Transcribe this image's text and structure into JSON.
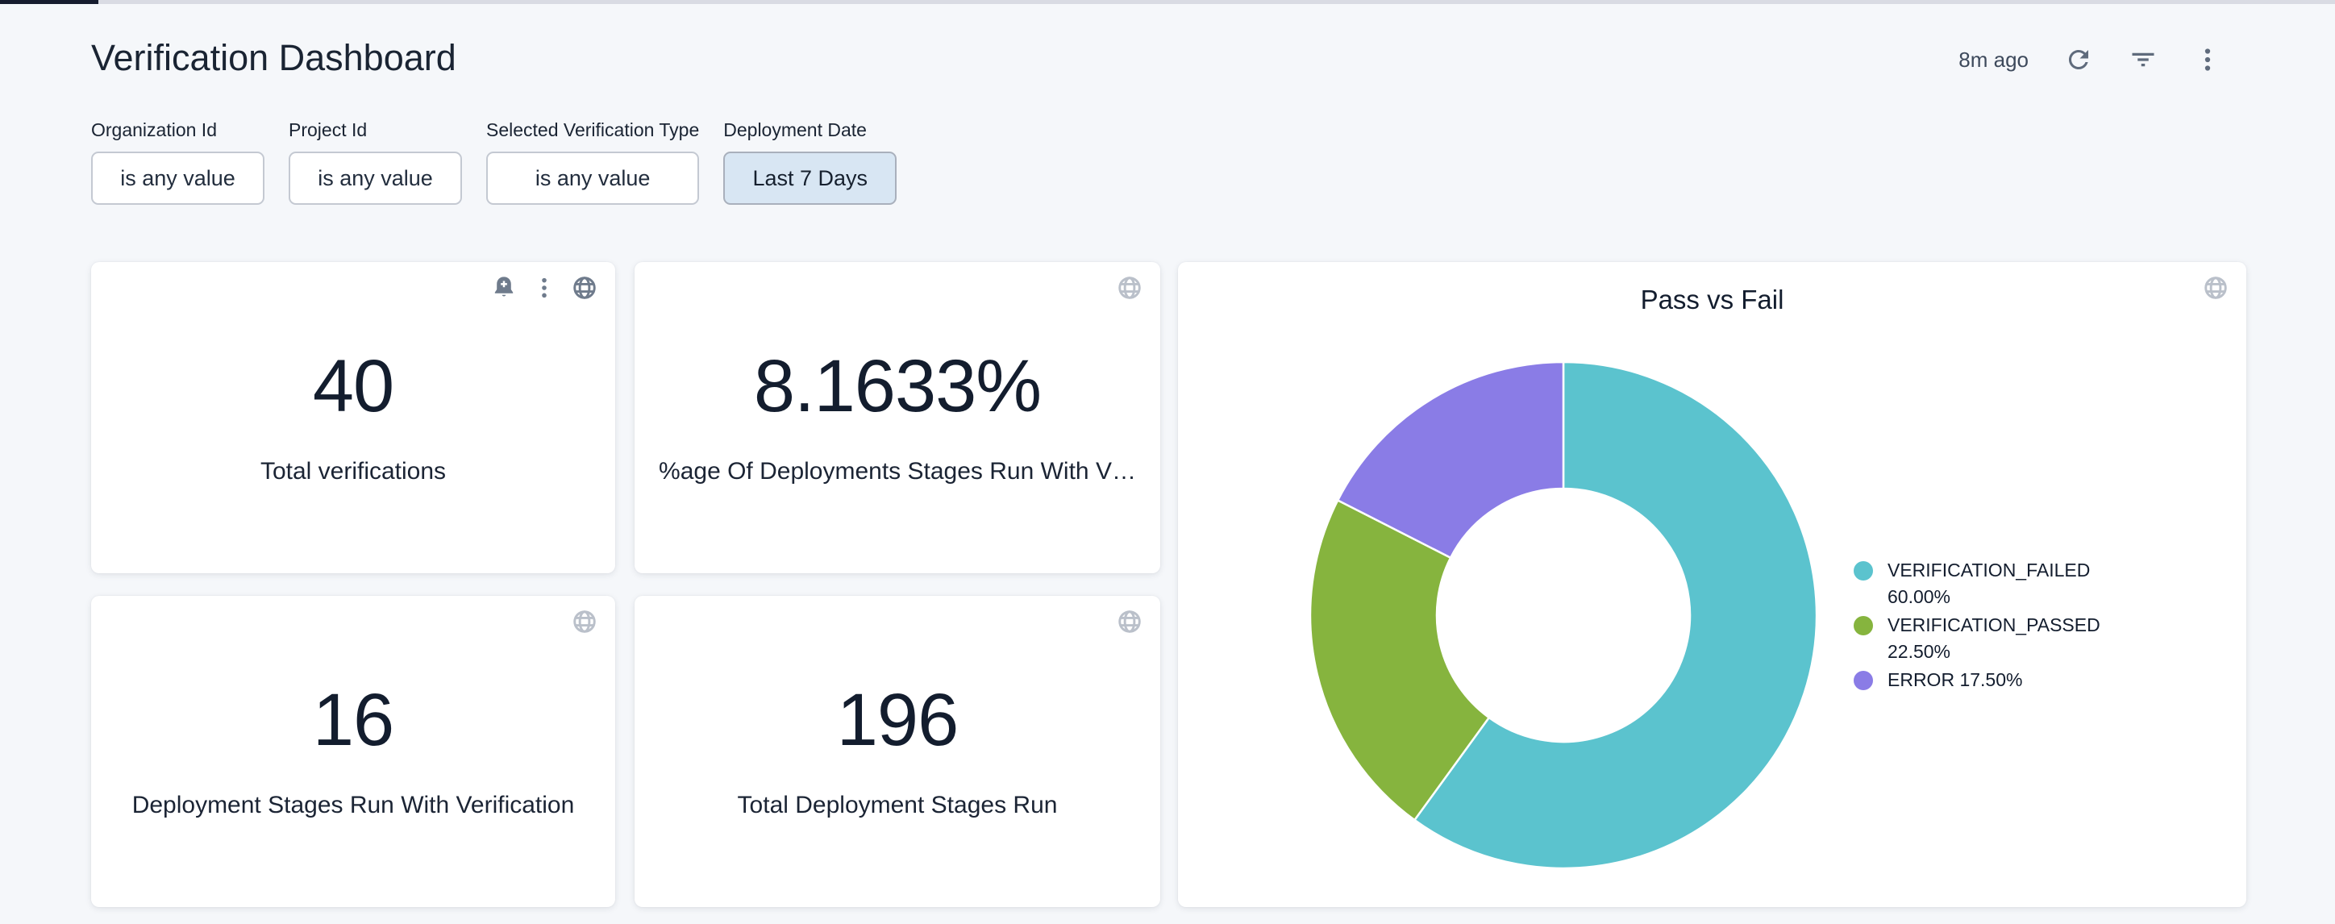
{
  "header": {
    "title": "Verification Dashboard",
    "last_refresh": "8m ago"
  },
  "filters": [
    {
      "label": "Organization Id",
      "value": "is any value",
      "active": false
    },
    {
      "label": "Project Id",
      "value": "is any value",
      "active": false
    },
    {
      "label": "Selected Verification Type",
      "value": "is any value",
      "active": false
    },
    {
      "label": "Deployment Date",
      "value": "Last 7 Days",
      "active": true
    }
  ],
  "tiles": [
    {
      "value": "40",
      "label": "Total verifications",
      "icons": [
        "bell-plus",
        "more-vert",
        "globe"
      ]
    },
    {
      "value": "8.1633%",
      "label": "%age Of Deployments Stages Run With V…",
      "icons": [
        "globe"
      ]
    },
    {
      "value": "16",
      "label": "Deployment Stages Run With Verification",
      "icons": [
        "globe"
      ]
    },
    {
      "value": "196",
      "label": "Total Deployment Stages Run",
      "icons": [
        "globe"
      ]
    }
  ],
  "chart_data": {
    "type": "pie",
    "subtype": "donut",
    "title": "Pass vs Fail",
    "labels": [
      "VERIFICATION_FAILED",
      "VERIFICATION_PASSED",
      "ERROR"
    ],
    "values": [
      60.0,
      22.5,
      17.5
    ],
    "formatted_values": [
      "60.00%",
      "22.50%",
      "17.50%"
    ],
    "colors": [
      "#5BC3CE",
      "#86B43E",
      "#8A7CE6"
    ],
    "legend_position": "right",
    "start_angle_deg": 0,
    "direction": "clockwise",
    "inner_radius_ratio": 0.5
  },
  "theme": {
    "page_bg": "#F5F7FA",
    "card_bg": "#FFFFFF",
    "text_dark": "#1A2433",
    "icon_active": "#6F7B8C",
    "icon_muted": "#BAC0CA",
    "chip_border": "#C4C9D2",
    "date_chip_bg": "#D8E6F3"
  }
}
